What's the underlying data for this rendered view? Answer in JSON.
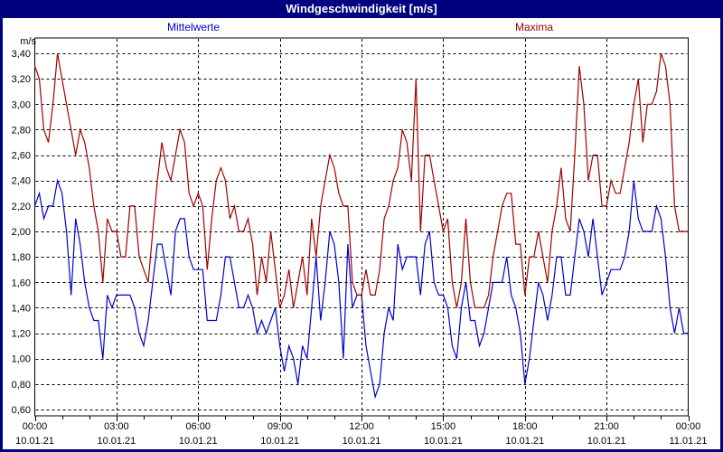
{
  "window": {
    "title": "Windgeschwindigkeit [m/s]"
  },
  "legend": {
    "mean_label": "Mittelwerte",
    "max_label": "Maxima"
  },
  "colors": {
    "title_bar": "#000080",
    "title_text": "#FFFFFF",
    "frame": "#000080",
    "panel_background": "#FFFFFF",
    "grid": "#000000",
    "axis": "#000000",
    "mean_series": "#0000CC",
    "max_series": "#A00000"
  },
  "chart_data": {
    "type": "line",
    "title": "Windgeschwindigkeit [m/s]",
    "ylabel_unit": "m/s",
    "xlabel": "",
    "grid": true,
    "legend_position": "top",
    "ylim": [
      0.55,
      3.52
    ],
    "y_ticks": [
      3.4,
      3.2,
      3.0,
      2.8,
      2.6,
      2.4,
      2.2,
      2.0,
      1.8,
      1.6,
      1.4,
      1.2,
      1.0,
      0.8,
      0.6
    ],
    "y_tick_labels": [
      "3,40",
      "3,20",
      "3,00",
      "2,80",
      "2,60",
      "2,40",
      "2,20",
      "2,00",
      "1,80",
      "1,60",
      "1,40",
      "1,20",
      "1,00",
      "0,80",
      "0,60"
    ],
    "x_range_hours": [
      0,
      24
    ],
    "x_minor_tick_hours": 1,
    "sample_interval_minutes": 10,
    "x_major_ticks": [
      {
        "hour": 0,
        "time": "00:00",
        "date": "10.01.21"
      },
      {
        "hour": 3,
        "time": "03:00",
        "date": "10.01.21"
      },
      {
        "hour": 6,
        "time": "06:00",
        "date": "10.01.21"
      },
      {
        "hour": 9,
        "time": "09:00",
        "date": "10.01.21"
      },
      {
        "hour": 12,
        "time": "12:00",
        "date": "10.01.21"
      },
      {
        "hour": 15,
        "time": "15:00",
        "date": "10.01.21"
      },
      {
        "hour": 18,
        "time": "18:00",
        "date": "10.01.21"
      },
      {
        "hour": 21,
        "time": "21:00",
        "date": "10.01.21"
      },
      {
        "hour": 24,
        "time": "00:00",
        "date": "11.01.21"
      }
    ],
    "series": [
      {
        "name": "Mittelwerte",
        "color": "#0000CC",
        "values": [
          2.2,
          2.3,
          2.1,
          2.2,
          2.2,
          2.4,
          2.3,
          2.0,
          1.5,
          2.1,
          1.9,
          1.6,
          1.4,
          1.3,
          1.3,
          1.0,
          1.5,
          1.4,
          1.5,
          1.5,
          1.5,
          1.5,
          1.4,
          1.2,
          1.1,
          1.3,
          1.6,
          1.9,
          1.9,
          1.7,
          1.5,
          2.0,
          2.1,
          2.1,
          1.8,
          1.7,
          1.7,
          1.7,
          1.3,
          1.3,
          1.3,
          1.5,
          1.8,
          1.8,
          1.6,
          1.4,
          1.4,
          1.5,
          1.4,
          1.2,
          1.3,
          1.2,
          1.3,
          1.4,
          1.1,
          0.9,
          1.1,
          1.0,
          0.8,
          1.1,
          1.0,
          1.4,
          1.8,
          1.3,
          1.6,
          2.0,
          1.9,
          1.6,
          1.0,
          1.9,
          1.4,
          1.5,
          1.5,
          1.1,
          0.9,
          0.7,
          0.8,
          1.2,
          1.4,
          1.3,
          1.9,
          1.7,
          1.8,
          1.8,
          1.8,
          1.5,
          1.9,
          2.0,
          1.6,
          1.5,
          1.5,
          1.4,
          1.1,
          1.0,
          1.4,
          1.6,
          1.3,
          1.3,
          1.1,
          1.2,
          1.4,
          1.6,
          1.6,
          1.6,
          1.8,
          1.5,
          1.4,
          1.2,
          0.8,
          1.0,
          1.3,
          1.6,
          1.5,
          1.3,
          1.5,
          1.8,
          1.8,
          1.5,
          1.5,
          1.8,
          2.1,
          2.0,
          1.8,
          2.1,
          1.8,
          1.5,
          1.6,
          1.7,
          1.7,
          1.7,
          1.8,
          2.0,
          2.4,
          2.1,
          2.0,
          2.0,
          2.0,
          2.2,
          2.1,
          1.8,
          1.4,
          1.2,
          1.4,
          1.2,
          1.2
        ]
      },
      {
        "name": "Maxima",
        "color": "#A00000",
        "values": [
          3.3,
          3.2,
          2.8,
          2.7,
          3.0,
          3.4,
          3.2,
          3.0,
          2.8,
          2.6,
          2.8,
          2.7,
          2.5,
          2.2,
          2.0,
          1.6,
          2.1,
          2.0,
          2.0,
          1.8,
          1.8,
          2.2,
          2.2,
          1.8,
          1.7,
          1.6,
          2.0,
          2.4,
          2.7,
          2.5,
          2.4,
          2.6,
          2.8,
          2.7,
          2.3,
          2.2,
          2.3,
          2.2,
          1.7,
          2.1,
          2.4,
          2.5,
          2.4,
          2.1,
          2.2,
          2.0,
          2.0,
          2.1,
          1.9,
          1.5,
          1.8,
          1.6,
          2.0,
          1.7,
          1.4,
          1.5,
          1.7,
          1.4,
          1.6,
          1.8,
          1.5,
          2.1,
          1.8,
          2.2,
          2.4,
          2.6,
          2.5,
          2.3,
          2.2,
          2.2,
          1.6,
          1.5,
          1.5,
          1.7,
          1.5,
          1.5,
          1.7,
          2.1,
          2.2,
          2.4,
          2.5,
          2.8,
          2.7,
          2.4,
          3.2,
          2.0,
          2.6,
          2.6,
          2.4,
          2.2,
          2.0,
          2.1,
          1.6,
          1.4,
          1.6,
          2.1,
          1.6,
          1.4,
          1.4,
          1.4,
          1.5,
          1.8,
          2.0,
          2.2,
          2.3,
          2.3,
          1.9,
          1.9,
          1.5,
          1.8,
          1.8,
          2.0,
          1.8,
          1.6,
          2.0,
          2.2,
          2.5,
          2.1,
          2.0,
          2.6,
          3.3,
          3.0,
          2.4,
          2.6,
          2.6,
          2.2,
          2.2,
          2.4,
          2.3,
          2.3,
          2.5,
          2.7,
          3.0,
          3.2,
          2.7,
          3.0,
          3.0,
          3.1,
          3.4,
          3.3,
          3.0,
          2.2,
          2.0,
          2.0,
          2.0
        ]
      }
    ]
  }
}
